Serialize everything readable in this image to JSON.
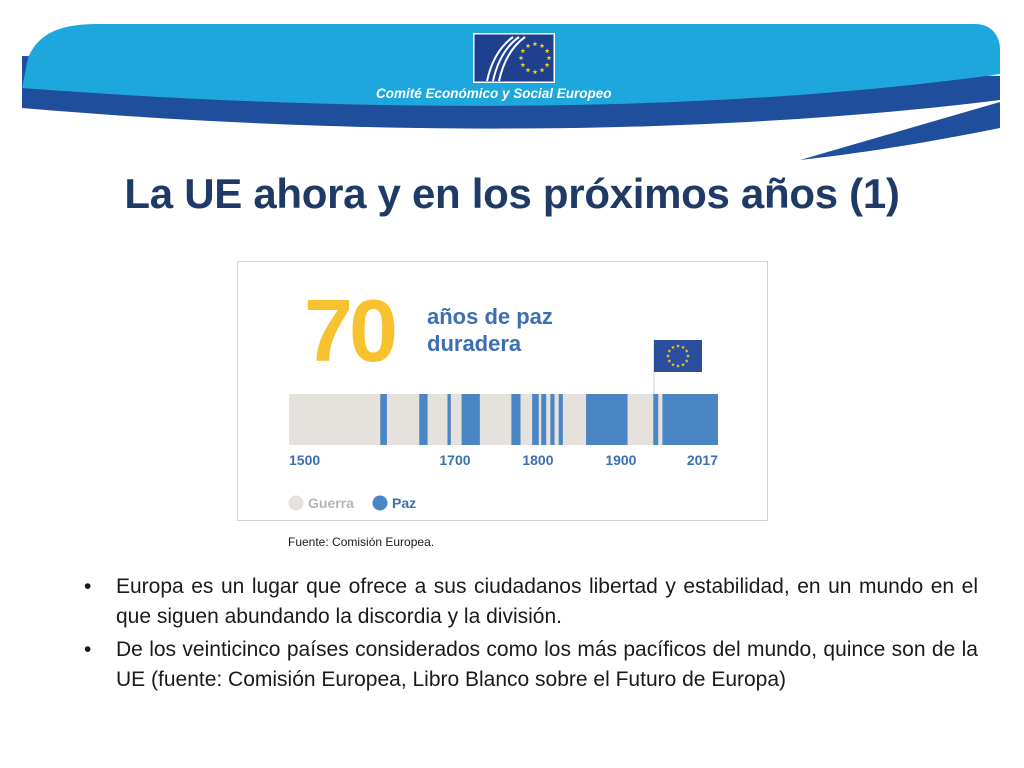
{
  "header": {
    "org_name": "Comité Económico y Social Europeo",
    "colors": {
      "dark_blue": "#1f4e9c",
      "light_blue": "#1ea7dd",
      "white": "#ffffff"
    },
    "logo": {
      "icon": "eu-flag-logo-icon"
    }
  },
  "slide": {
    "title": "La UE ahora y en los próximos años (1)"
  },
  "figure": {
    "big_number": "70",
    "headline_line1": "años de paz",
    "headline_line2": "duradera",
    "flag_icon": "eu-flag-icon",
    "colors": {
      "war": "#e5e1dd",
      "peace": "#4a86c4",
      "number": "#f7c12f",
      "text": "#3c6fb0"
    }
  },
  "chart_data": {
    "type": "bar",
    "x_domain": [
      1500,
      2017
    ],
    "ticks": [
      {
        "label": "1500",
        "value": 1500
      },
      {
        "label": "1700",
        "value": 1700
      },
      {
        "label": "1800",
        "value": 1800
      },
      {
        "label": "1900",
        "value": 1900
      },
      {
        "label": "2017",
        "value": 2017
      }
    ],
    "legend": [
      {
        "label": "Guerra",
        "color": "#e5e1dd"
      },
      {
        "label": "Paz",
        "color": "#4a86c4"
      }
    ],
    "peace_periods": [
      [
        1610,
        1618
      ],
      [
        1657,
        1667
      ],
      [
        1691,
        1695
      ],
      [
        1708,
        1730
      ],
      [
        1768,
        1779
      ],
      [
        1793,
        1801
      ],
      [
        1804,
        1810
      ],
      [
        1815,
        1820
      ],
      [
        1825,
        1830
      ],
      [
        1858,
        1908
      ],
      [
        1939,
        1945
      ],
      [
        1950,
        2017
      ]
    ]
  },
  "source": "Fuente: Comisión Europea.",
  "bullets": [
    "Europa es un lugar que ofrece a sus ciudadanos libertad y estabilidad, en un mundo en el que siguen abundando la discordia y la división.",
    "De los veinticinco países considerados como los más pacíficos del mundo, quince son de la UE (fuente: Comisión Europea, Libro Blanco sobre el Futuro de Europa)"
  ]
}
